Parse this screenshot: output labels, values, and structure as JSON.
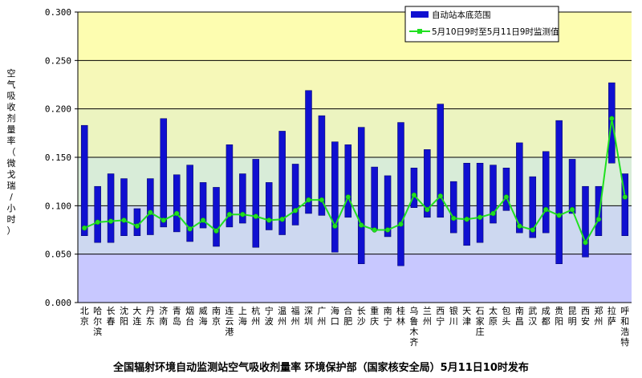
{
  "chart_data": {
    "type": "bar",
    "caption": "全国辐射环境自动监测站空气吸收剂量率  环境保护部（国家核安全局）5月11日10时发布",
    "ylabel": "空气吸收剂量率（微戈瑞/小时）",
    "ylim": [
      0,
      0.3
    ],
    "yticks": [
      "0.000",
      "0.050",
      "0.100",
      "0.150",
      "0.200",
      "0.250",
      "0.300"
    ],
    "grid": true,
    "legend_position": "top-right",
    "background_bands": [
      "#c8c8ff",
      "#cdd8f0",
      "#d8ecd8",
      "#ecf4c0",
      "#f6f8b8",
      "#fdfdb0"
    ],
    "colors": {
      "range_bar": "#1010d0",
      "line": "#20e020"
    },
    "categories": [
      "北京",
      "哈尔滨",
      "长春",
      "沈阳",
      "大连",
      "丹东",
      "济南",
      "青岛",
      "烟台",
      "威海",
      "南京",
      "连云港",
      "上海",
      "杭州",
      "宁波",
      "温州",
      "福州",
      "深圳",
      "广州",
      "海口",
      "合肥",
      "长沙",
      "重庆",
      "南宁",
      "桂林",
      "乌鲁木齐",
      "兰州",
      "西宁",
      "银川",
      "天津",
      "石家庄",
      "太原",
      "包头",
      "南昌",
      "武汉",
      "成都",
      "贵阳",
      "昆明",
      "西安",
      "郑州",
      "拉萨",
      "呼和浩特"
    ],
    "series": [
      {
        "name": "自动站本底范围",
        "kind": "range",
        "low": [
          0.069,
          0.062,
          0.062,
          0.069,
          0.069,
          0.07,
          0.078,
          0.073,
          0.063,
          0.077,
          0.058,
          0.078,
          0.082,
          0.057,
          0.075,
          0.07,
          0.08,
          0.092,
          0.09,
          0.052,
          0.088,
          0.04,
          0.075,
          0.068,
          0.038,
          0.098,
          0.088,
          0.088,
          0.072,
          0.059,
          0.062,
          0.082,
          0.095,
          0.072,
          0.067,
          0.072,
          0.04,
          0.092,
          0.047,
          0.069,
          0.144,
          0.069
        ],
        "high": [
          0.183,
          0.12,
          0.133,
          0.128,
          0.097,
          0.128,
          0.19,
          0.132,
          0.142,
          0.124,
          0.119,
          0.163,
          0.133,
          0.148,
          0.124,
          0.177,
          0.143,
          0.219,
          0.193,
          0.166,
          0.163,
          0.181,
          0.14,
          0.131,
          0.186,
          0.139,
          0.158,
          0.205,
          0.125,
          0.144,
          0.144,
          0.142,
          0.139,
          0.165,
          0.13,
          0.156,
          0.188,
          0.148,
          0.12,
          0.12,
          0.227,
          0.133
        ]
      },
      {
        "name": "5月10日9时至5月11日9时监测值",
        "kind": "line",
        "values": [
          0.077,
          0.083,
          0.084,
          0.085,
          0.079,
          0.093,
          0.085,
          0.092,
          0.076,
          0.085,
          0.074,
          0.091,
          0.091,
          0.089,
          0.085,
          0.086,
          0.095,
          0.106,
          0.106,
          0.079,
          0.109,
          0.08,
          0.075,
          0.075,
          0.081,
          0.111,
          0.096,
          0.11,
          0.087,
          0.086,
          0.088,
          0.092,
          0.109,
          0.079,
          0.075,
          0.096,
          0.09,
          0.096,
          0.062,
          0.086,
          0.19,
          0.109
        ]
      }
    ]
  }
}
